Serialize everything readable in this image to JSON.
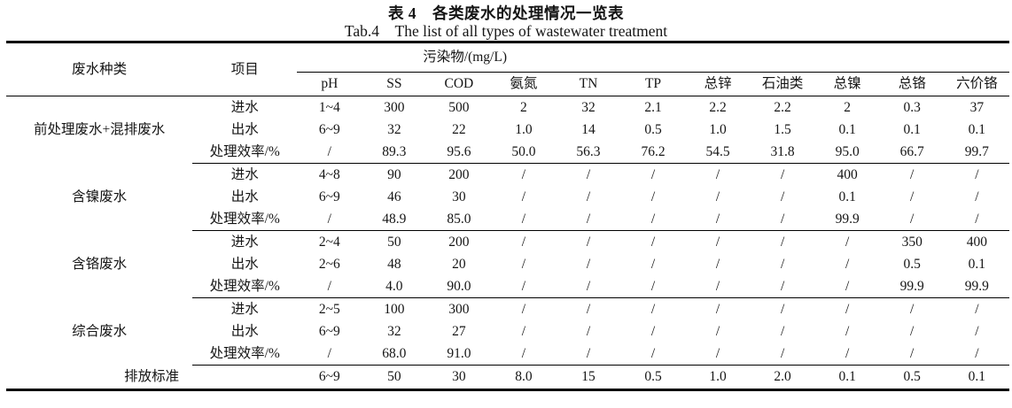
{
  "title": {
    "zh": "表 4　各类废水的处理情况一览表",
    "en": "Tab.4　The list of all types of wastewater treatment"
  },
  "header": {
    "wastewater_type": "废水种类",
    "item": "项目",
    "pollutant_group": "污染物/(mg/L)",
    "pollutants": [
      "pH",
      "SS",
      "COD",
      "氨氮",
      "TN",
      "TP",
      "总锌",
      "石油类",
      "总镍",
      "总铬",
      "六价铬"
    ]
  },
  "groups": [
    {
      "name": "前处理废水+混排废水",
      "rows": [
        {
          "item": "进水",
          "values": [
            "1~4",
            "300",
            "500",
            "2",
            "32",
            "2.1",
            "2.2",
            "2.2",
            "2",
            "0.3",
            "37"
          ]
        },
        {
          "item": "出水",
          "values": [
            "6~9",
            "32",
            "22",
            "1.0",
            "14",
            "0.5",
            "1.0",
            "1.5",
            "0.1",
            "0.1",
            "0.1"
          ]
        },
        {
          "item": "处理效率/%",
          "values": [
            "/",
            "89.3",
            "95.6",
            "50.0",
            "56.3",
            "76.2",
            "54.5",
            "31.8",
            "95.0",
            "66.7",
            "99.7"
          ]
        }
      ]
    },
    {
      "name": "含镍废水",
      "rows": [
        {
          "item": "进水",
          "values": [
            "4~8",
            "90",
            "200",
            "/",
            "/",
            "/",
            "/",
            "/",
            "400",
            "/",
            "/"
          ]
        },
        {
          "item": "出水",
          "values": [
            "6~9",
            "46",
            "30",
            "/",
            "/",
            "/",
            "/",
            "/",
            "0.1",
            "/",
            "/"
          ]
        },
        {
          "item": "处理效率/%",
          "values": [
            "/",
            "48.9",
            "85.0",
            "/",
            "/",
            "/",
            "/",
            "/",
            "99.9",
            "/",
            "/"
          ]
        }
      ]
    },
    {
      "name": "含铬废水",
      "rows": [
        {
          "item": "进水",
          "values": [
            "2~4",
            "50",
            "200",
            "/",
            "/",
            "/",
            "/",
            "/",
            "/",
            "350",
            "400"
          ]
        },
        {
          "item": "出水",
          "values": [
            "2~6",
            "48",
            "20",
            "/",
            "/",
            "/",
            "/",
            "/",
            "/",
            "0.5",
            "0.1"
          ]
        },
        {
          "item": "处理效率/%",
          "values": [
            "/",
            "4.0",
            "90.0",
            "/",
            "/",
            "/",
            "/",
            "/",
            "/",
            "99.9",
            "99.9"
          ]
        }
      ]
    },
    {
      "name": "综合废水",
      "rows": [
        {
          "item": "进水",
          "values": [
            "2~5",
            "100",
            "300",
            "/",
            "/",
            "/",
            "/",
            "/",
            "/",
            "/",
            "/"
          ]
        },
        {
          "item": "出水",
          "values": [
            "6~9",
            "32",
            "27",
            "/",
            "/",
            "/",
            "/",
            "/",
            "/",
            "/",
            "/"
          ]
        },
        {
          "item": "处理效率/%",
          "values": [
            "/",
            "68.0",
            "91.0",
            "/",
            "/",
            "/",
            "/",
            "/",
            "/",
            "/",
            "/"
          ]
        }
      ]
    }
  ],
  "standard_row": {
    "label": "排放标准",
    "values": [
      "6~9",
      "50",
      "30",
      "8.0",
      "15",
      "0.5",
      "1.0",
      "2.0",
      "0.1",
      "0.5",
      "0.1"
    ]
  },
  "colors": {
    "text": "#151515",
    "rule": "#000000",
    "background": "#ffffff"
  }
}
